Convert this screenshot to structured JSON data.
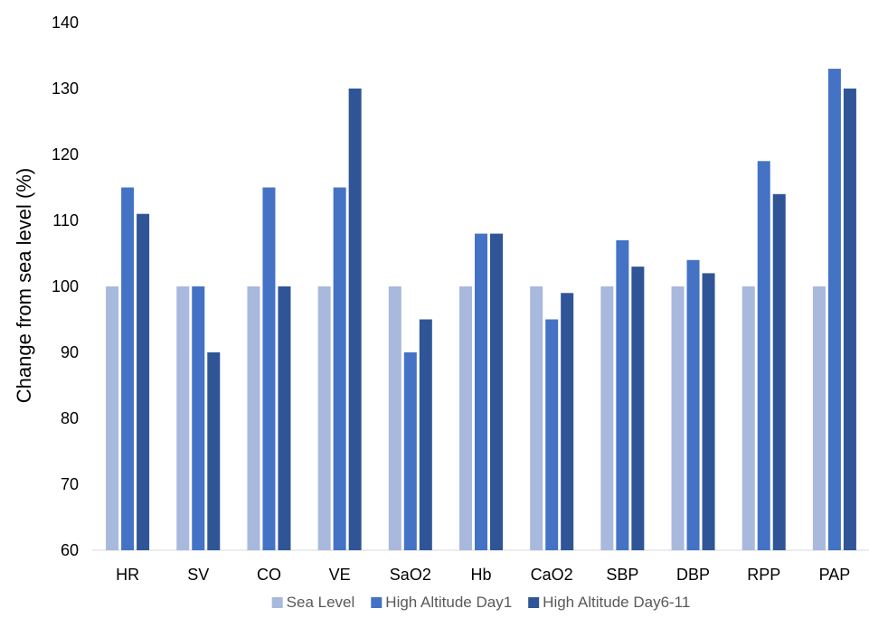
{
  "chart_data": {
    "type": "bar",
    "title": "",
    "xlabel": "",
    "ylabel": "Change from sea level (%)",
    "ylim": [
      60,
      140
    ],
    "yticks": [
      60,
      70,
      80,
      90,
      100,
      110,
      120,
      130,
      140
    ],
    "grid": false,
    "legend_position": "bottom",
    "categories": [
      "HR",
      "SV",
      "CO",
      "VE",
      "SaO2",
      "Hb",
      "CaO2",
      "SBP",
      "DBP",
      "RPP",
      "PAP"
    ],
    "series": [
      {
        "name": "Sea Level",
        "color": "#a9b8dd",
        "values": [
          100,
          100,
          100,
          100,
          100,
          100,
          100,
          100,
          100,
          100,
          100
        ]
      },
      {
        "name": "High Altitude Day1",
        "color": "#4472c4",
        "values": [
          115,
          100,
          115,
          115,
          90,
          108,
          95,
          107,
          104,
          119,
          133
        ]
      },
      {
        "name": "High Altitude Day6-11",
        "color": "#2f5597",
        "values": [
          111,
          90,
          100,
          130,
          95,
          108,
          99,
          103,
          102,
          114,
          130
        ]
      }
    ]
  }
}
